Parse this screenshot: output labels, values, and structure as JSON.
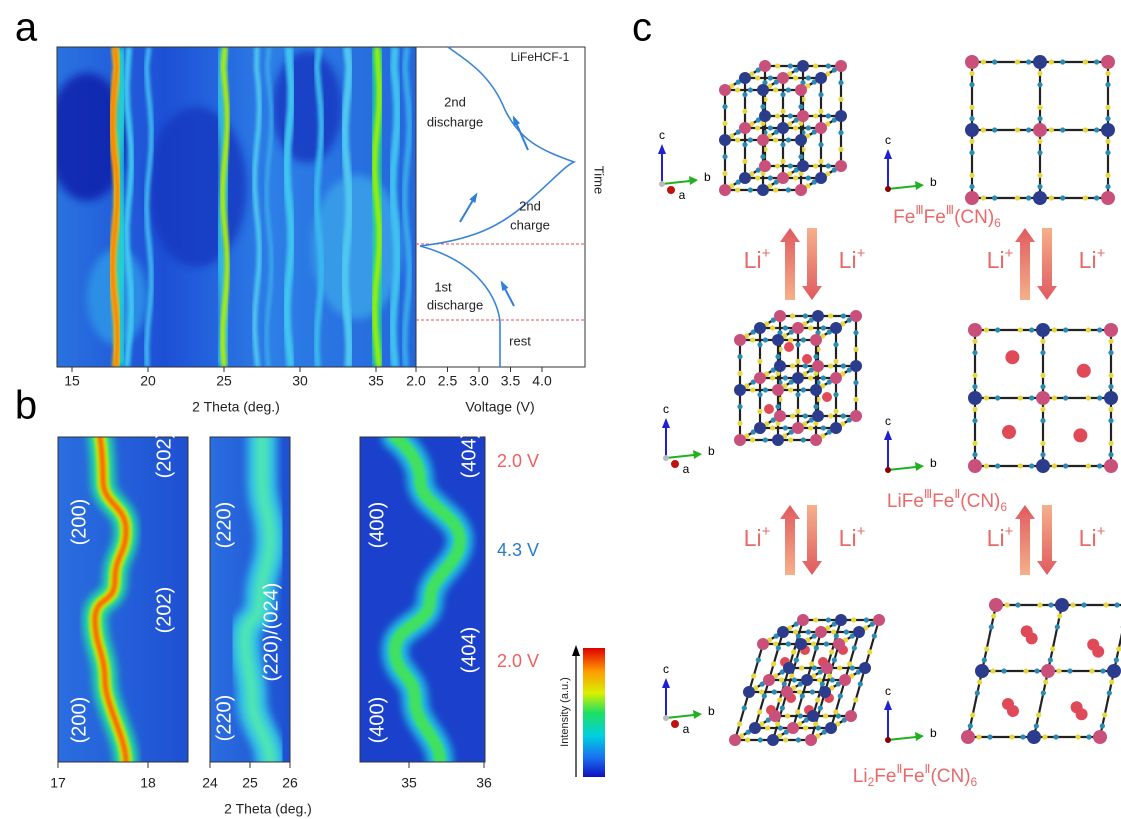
{
  "panel_a": {
    "label": "a",
    "tag": "LiFeHCF-1",
    "stages": [
      [
        "2nd",
        "discharge"
      ],
      [
        "2nd",
        "charge"
      ],
      [
        "1st",
        "discharge"
      ],
      [
        "rest"
      ]
    ],
    "time": "Time",
    "x_title": "2 Theta (deg.)",
    "x_ticks": [
      "15",
      "20",
      "25",
      "30",
      "35"
    ],
    "v_title": "Voltage (V)",
    "v_ticks": [
      "2.0",
      "2.5",
      "3.0",
      "3.5",
      "4.0"
    ]
  },
  "panel_b": {
    "label": "b",
    "peaks": [
      "(200)",
      "(202)",
      "(202)",
      "(200)",
      "(220)",
      "(220)/(024)",
      "(220)",
      "(400)",
      "(404)",
      "(400)",
      "(404)"
    ],
    "voltages": [
      "2.0 V",
      "4.3 V",
      "2.0 V"
    ],
    "colorbar": "Intensity (a.u.)",
    "x_title": "2 Theta (deg.)",
    "x_ticks": [
      [
        "17",
        "18"
      ],
      [
        "24",
        "25",
        "26"
      ],
      [
        "35",
        "36"
      ]
    ]
  },
  "panel_c": {
    "label": "c",
    "formulas": [
      [
        "Fe",
        "Ⅲ",
        "Fe",
        "Ⅲ",
        "(CN)",
        "6"
      ],
      [
        "LiFe",
        "Ⅲ",
        "Fe",
        "Ⅱ",
        "(CN)",
        "6"
      ],
      [
        "Li",
        "2",
        "Fe",
        "Ⅱ",
        "Fe",
        "Ⅱ",
        "(CN)",
        "6"
      ]
    ],
    "ion": [
      "Li",
      "+"
    ],
    "axes": [
      "c",
      "b",
      "a"
    ]
  }
}
